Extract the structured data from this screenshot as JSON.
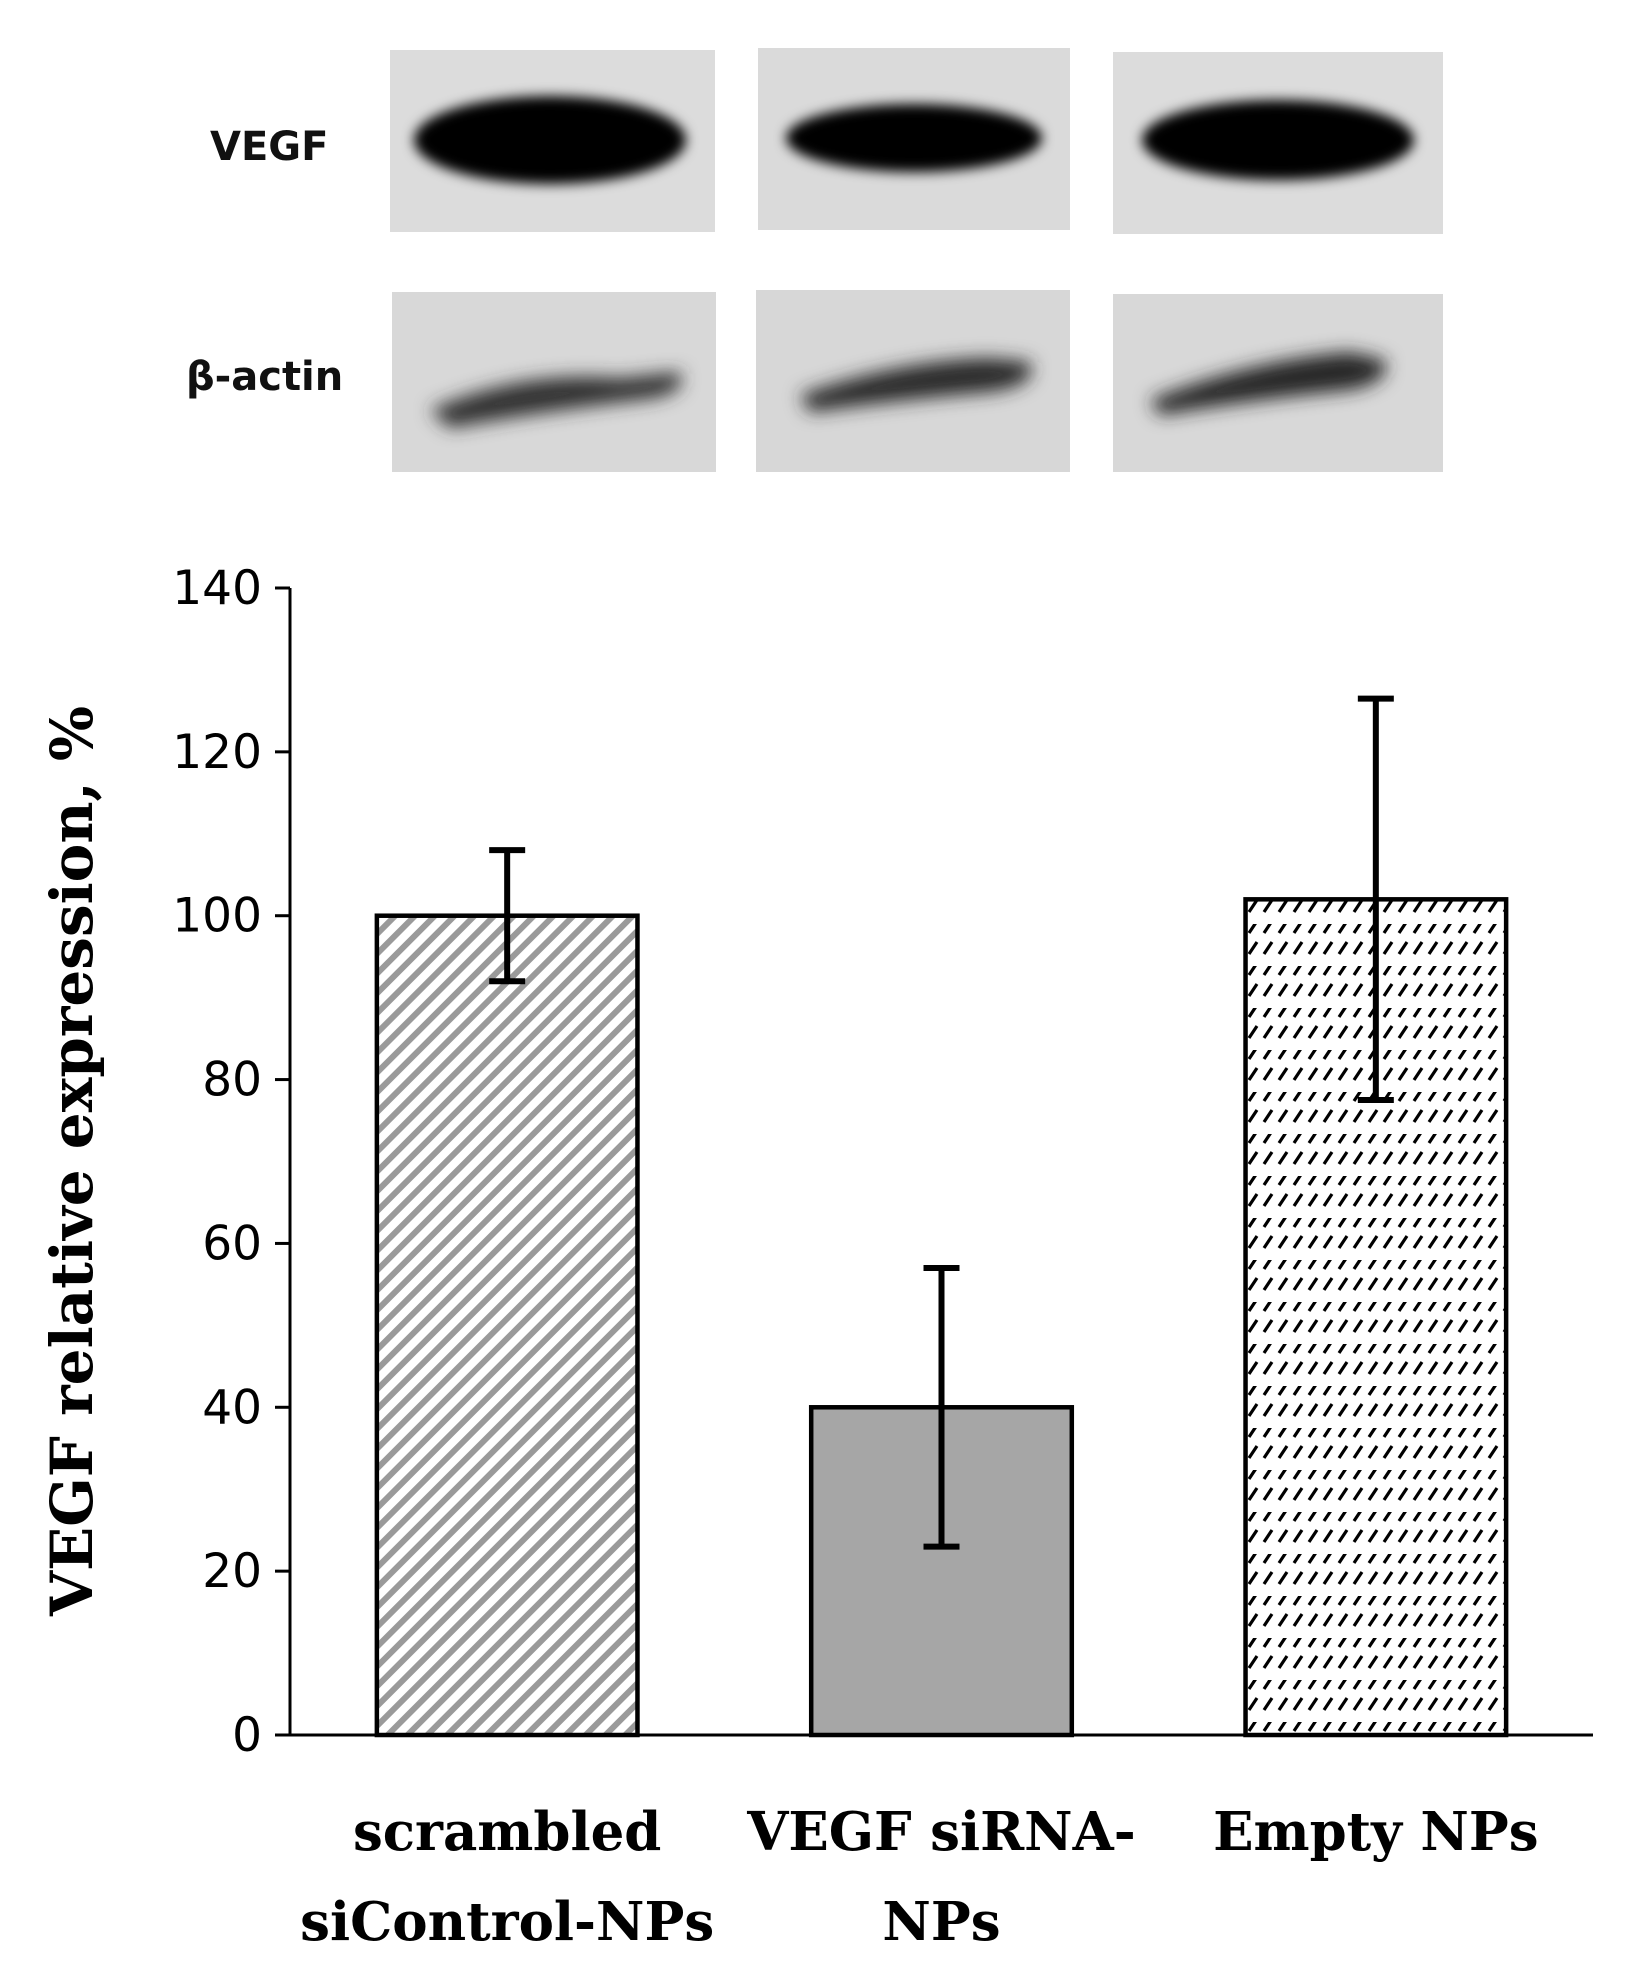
{
  "blot": {
    "rows": [
      {
        "label": "VEGF",
        "bands": [
          {
            "intensity": 1.0
          },
          {
            "intensity": 0.85
          },
          {
            "intensity": 0.95
          }
        ]
      },
      {
        "label": "β-actin",
        "bands": [
          {
            "intensity": 0.55
          },
          {
            "intensity": 0.6
          },
          {
            "intensity": 0.65
          }
        ]
      }
    ]
  },
  "colors": {
    "scrambled_hatch": "#9a9a9a",
    "vegf_sirna_fill": "#a6a6a6",
    "empty_np_dash": "#000000",
    "axis": "#000000"
  },
  "chart_data": {
    "type": "bar",
    "categories": [
      [
        "scrambled",
        "siControl-NPs"
      ],
      [
        "VEGF siRNA-",
        "NPs"
      ],
      [
        "Empty NPs"
      ]
    ],
    "values": [
      100,
      40,
      102
    ],
    "errors": [
      8,
      17,
      24.5
    ],
    "patterns": [
      "diagonal-hatch",
      "solid-gray",
      "dashed-hatch"
    ],
    "title": "",
    "xlabel": "",
    "ylabel": "VEGF relative expression, %",
    "ylim": [
      0,
      140
    ],
    "yticks": [
      0,
      20,
      40,
      60,
      80,
      100,
      120,
      140
    ],
    "grid": false,
    "legend": false
  }
}
